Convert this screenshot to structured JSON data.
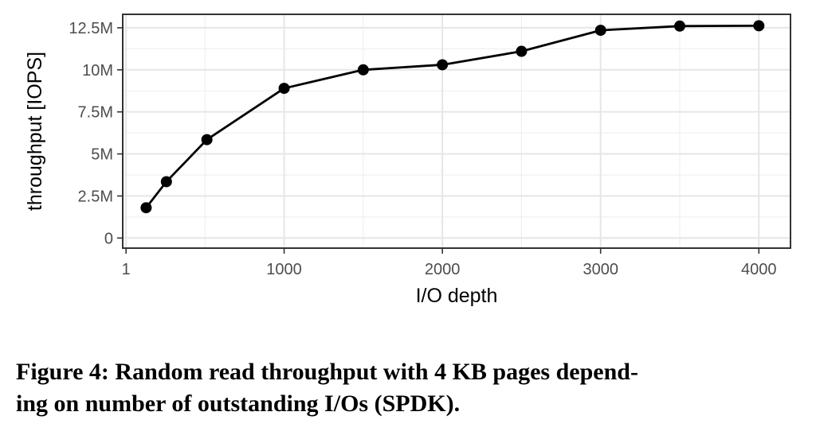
{
  "chart_data": {
    "type": "line",
    "xlabel": "I/O depth",
    "ylabel": "throughput [IOPS]",
    "x_ticks": [
      1,
      1000,
      2000,
      3000,
      4000
    ],
    "x_tick_labels": [
      "1",
      "1000",
      "2000",
      "3000",
      "4000"
    ],
    "y_ticks": [
      0,
      2500000,
      5000000,
      7500000,
      10000000,
      12500000
    ],
    "y_tick_labels": [
      "0",
      "2.5M",
      "5M",
      "7.5M",
      "10M",
      "12.5M"
    ],
    "xlim": [
      -20,
      4200
    ],
    "ylim": [
      -600000,
      13300000
    ],
    "grid": true,
    "series": [
      {
        "color": "#000000",
        "x": [
          128,
          256,
          512,
          1000,
          1500,
          2000,
          2500,
          3000,
          3500,
          4000
        ],
        "y": [
          1800000,
          3350000,
          5850000,
          8900000,
          10000000,
          10300000,
          11100000,
          12350000,
          12600000,
          12620000
        ]
      }
    ]
  },
  "caption": {
    "line1": "Figure 4: Random read throughput with 4 KB pages depend-",
    "line2": "ing on number of outstanding I/Os (SPDK)."
  }
}
